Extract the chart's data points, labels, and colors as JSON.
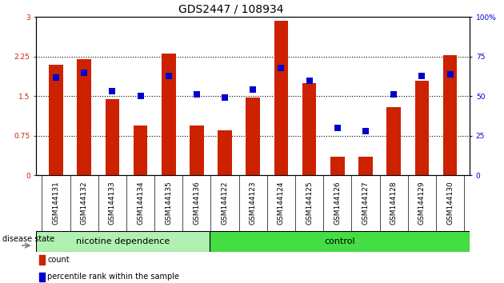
{
  "title": "GDS2447 / 108934",
  "samples": [
    "GSM144131",
    "GSM144132",
    "GSM144133",
    "GSM144134",
    "GSM144135",
    "GSM144136",
    "GSM144122",
    "GSM144123",
    "GSM144124",
    "GSM144125",
    "GSM144126",
    "GSM144127",
    "GSM144128",
    "GSM144129",
    "GSM144130"
  ],
  "count_values": [
    2.1,
    2.2,
    1.45,
    0.95,
    2.3,
    0.95,
    0.85,
    1.47,
    2.93,
    1.75,
    0.35,
    0.35,
    1.3,
    1.8,
    2.27
  ],
  "percentile_values": [
    62,
    65,
    53,
    50,
    63,
    51,
    49,
    54,
    68,
    60,
    30,
    28,
    51,
    63,
    64
  ],
  "bar_color": "#cc2200",
  "dot_color": "#0000cc",
  "nicotine_count": 6,
  "control_count": 9,
  "nicotine_label": "nicotine dependence",
  "control_label": "control",
  "disease_state_label": "disease state",
  "legend_count": "count",
  "legend_percentile": "percentile rank within the sample",
  "ylim_left": [
    0,
    3
  ],
  "ylim_right": [
    0,
    100
  ],
  "yticks_left": [
    0,
    0.75,
    1.5,
    2.25,
    3
  ],
  "yticks_right": [
    0,
    25,
    50,
    75,
    100
  ],
  "ytick_labels_left": [
    "0",
    "0.75",
    "1.5",
    "2.25",
    "3"
  ],
  "ytick_labels_right": [
    "0",
    "25",
    "50",
    "75",
    "100%"
  ],
  "bar_width": 0.5,
  "dot_size": 40,
  "nicotine_color": "#b0f0b0",
  "control_color": "#44dd44",
  "title_fontsize": 10,
  "tick_fontsize": 6.5,
  "label_fontsize": 8,
  "legend_fontsize": 7
}
